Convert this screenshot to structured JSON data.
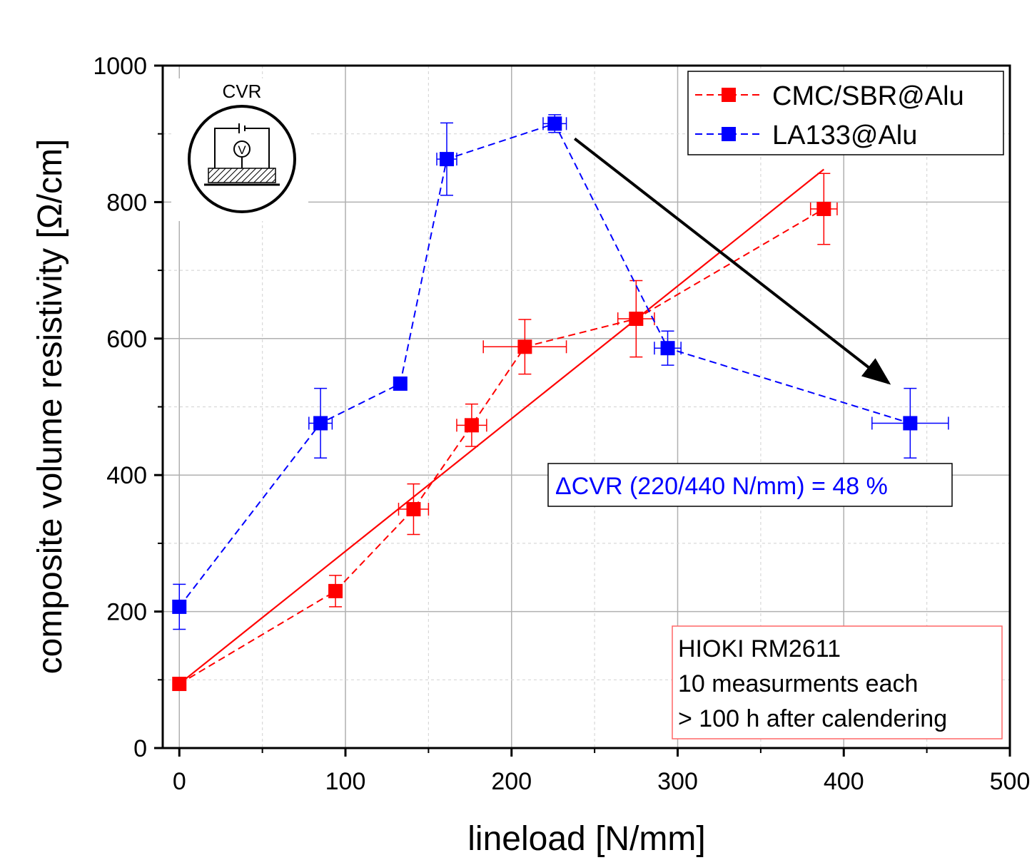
{
  "chart_data": {
    "type": "scatter",
    "xlabel": "lineload [N/mm]",
    "ylabel": "composite volume resistivity [Ω/cm]",
    "xlim": [
      -10,
      500
    ],
    "ylim": [
      0,
      1000
    ],
    "x_ticks": [
      0,
      100,
      200,
      300,
      400,
      500
    ],
    "y_ticks": [
      0,
      200,
      400,
      600,
      800,
      1000
    ],
    "grid": true,
    "legend_position": "top-right",
    "series": [
      {
        "name": "CMC/SBR@Alu",
        "color": "#ff0000",
        "marker": "square",
        "line": "dashed",
        "points": [
          {
            "x": 0,
            "y": 94,
            "xerr": 0,
            "yerr": 0
          },
          {
            "x": 94,
            "y": 230,
            "xerr": 0,
            "yerr": 23
          },
          {
            "x": 141,
            "y": 350,
            "xerr": 9,
            "yerr": 37
          },
          {
            "x": 176,
            "y": 473,
            "xerr": 9,
            "yerr": 31
          },
          {
            "x": 208,
            "y": 588,
            "xerr": 25,
            "yerr": 40
          },
          {
            "x": 275,
            "y": 629,
            "xerr": 11,
            "yerr": 56
          },
          {
            "x": 388,
            "y": 790,
            "xerr": 8,
            "yerr": 52
          }
        ]
      },
      {
        "name": "LA133@Alu",
        "color": "#0000ff",
        "marker": "square",
        "line": "dashed",
        "points": [
          {
            "x": 0,
            "y": 207,
            "xerr": 0,
            "yerr": 33
          },
          {
            "x": 85,
            "y": 476,
            "xerr": 7,
            "yerr": 51
          },
          {
            "x": 133,
            "y": 534,
            "xerr": 0,
            "yerr": 0
          },
          {
            "x": 161,
            "y": 863,
            "xerr": 6,
            "yerr": 53
          },
          {
            "x": 226,
            "y": 915,
            "xerr": 7,
            "yerr": 13
          },
          {
            "x": 294,
            "y": 586,
            "xerr": 8,
            "yerr": 25
          },
          {
            "x": 440,
            "y": 476,
            "xerr": 23,
            "yerr": 51
          }
        ]
      }
    ],
    "fit_line": {
      "color": "#ff0000",
      "from": [
        0,
        94
      ],
      "to": [
        388,
        848
      ]
    },
    "annotations": {
      "delta_cvr": "ΔCVR (220/440 N/mm) = 48 %",
      "note_lines": [
        "HIOKI RM2611",
        "10 measurments each",
        "> 100 h after calendering"
      ],
      "arrow": {
        "from": [
          238,
          893
        ],
        "to": [
          427,
          535
        ]
      },
      "inset_label": "CVR"
    }
  }
}
